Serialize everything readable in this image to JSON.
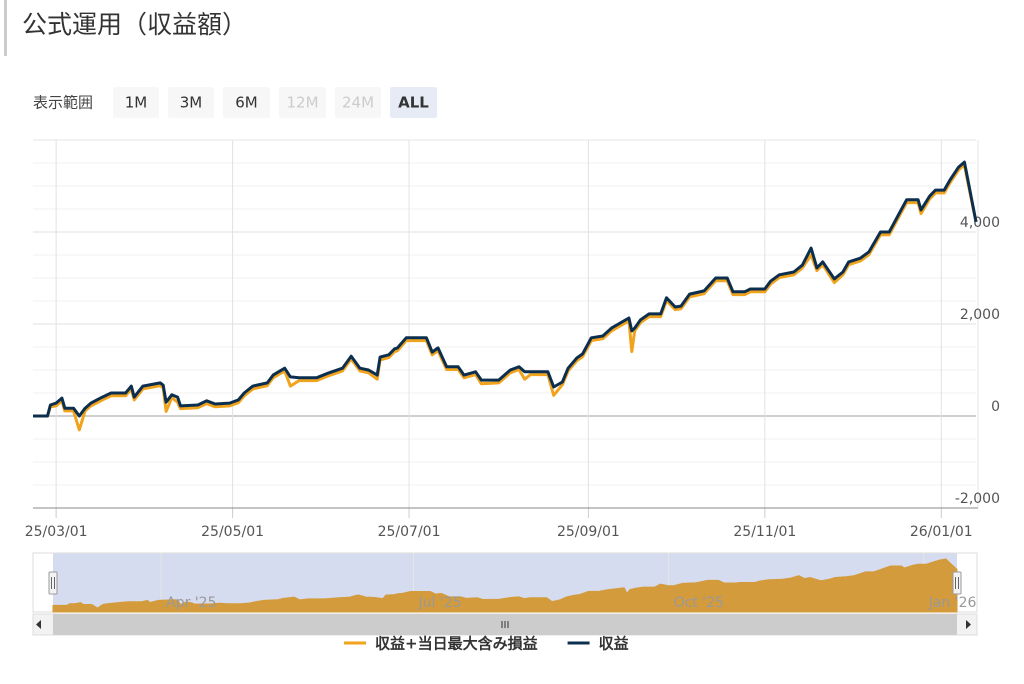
{
  "chart_data": {
    "type": "line",
    "title": "公式運用（収益額）",
    "range_selector": {
      "label": "表示範囲",
      "buttons": [
        "1M",
        "3M",
        "6M",
        "12M",
        "24M",
        "ALL"
      ],
      "selected": 5,
      "disabled": [
        3,
        4
      ]
    },
    "x": [
      "2025-02-21",
      "2025-02-26",
      "2025-02-27",
      "2025-03-01",
      "2025-03-03",
      "2025-03-04",
      "2025-03-07",
      "2025-03-09",
      "2025-03-11",
      "2025-03-13",
      "2025-03-17",
      "2025-03-20",
      "2025-03-25",
      "2025-03-27",
      "2025-03-28",
      "2025-03-31",
      "2025-04-06",
      "2025-04-07",
      "2025-04-08",
      "2025-04-10",
      "2025-04-12",
      "2025-04-13",
      "2025-04-19",
      "2025-04-22",
      "2025-04-25",
      "2025-04-30",
      "2025-05-03",
      "2025-05-05",
      "2025-05-08",
      "2025-05-13",
      "2025-05-15",
      "2025-05-19",
      "2025-05-21",
      "2025-05-24",
      "2025-05-30",
      "2025-06-03",
      "2025-06-08",
      "2025-06-11",
      "2025-06-14",
      "2025-06-17",
      "2025-06-20",
      "2025-06-21",
      "2025-06-24",
      "2025-06-26",
      "2025-06-27",
      "2025-06-30",
      "2025-07-07",
      "2025-07-09",
      "2025-07-11",
      "2025-07-14",
      "2025-07-18",
      "2025-07-20",
      "2025-07-24",
      "2025-07-26",
      "2025-08-01",
      "2025-08-05",
      "2025-08-08",
      "2025-08-10",
      "2025-08-12",
      "2025-08-18",
      "2025-08-20",
      "2025-08-23",
      "2025-08-25",
      "2025-08-28",
      "2025-08-30",
      "2025-09-02",
      "2025-09-06",
      "2025-09-09",
      "2025-09-15",
      "2025-09-16",
      "2025-09-17",
      "2025-09-19",
      "2025-09-22",
      "2025-09-26",
      "2025-09-28",
      "2025-10-01",
      "2025-10-03",
      "2025-10-06",
      "2025-10-11",
      "2025-10-15",
      "2025-10-19",
      "2025-10-21",
      "2025-10-25",
      "2025-10-27",
      "2025-11-01",
      "2025-11-03",
      "2025-11-06",
      "2025-11-11",
      "2025-11-14",
      "2025-11-17",
      "2025-11-19",
      "2025-11-21",
      "2025-11-25",
      "2025-11-28",
      "2025-11-30",
      "2025-12-04",
      "2025-12-07",
      "2025-12-11",
      "2025-12-14",
      "2025-12-17",
      "2025-12-20",
      "2025-12-24",
      "2025-12-25",
      "2025-12-28",
      "2025-12-30",
      "2026-01-02",
      "2026-01-04",
      "2026-01-07",
      "2026-01-09",
      "2026-01-10",
      "2026-01-13"
    ],
    "series": [
      {
        "name": "収益+当日最大含み損益",
        "color": "#f0a31c",
        "values": [
          0,
          0,
          200,
          220,
          330,
          110,
          110,
          -300,
          110,
          220,
          350,
          440,
          440,
          590,
          350,
          590,
          660,
          610,
          100,
          400,
          300,
          160,
          180,
          270,
          200,
          220,
          290,
          440,
          590,
          660,
          830,
          980,
          650,
          770,
          770,
          870,
          980,
          1240,
          980,
          940,
          800,
          1220,
          1270,
          1400,
          1420,
          1640,
          1640,
          1330,
          1420,
          1010,
          1010,
          830,
          900,
          700,
          720,
          940,
          1010,
          800,
          900,
          900,
          450,
          680,
          980,
          1200,
          1290,
          1640,
          1680,
          1850,
          2070,
          1400,
          1850,
          2030,
          2160,
          2160,
          2510,
          2310,
          2330,
          2590,
          2660,
          2940,
          2940,
          2640,
          2640,
          2700,
          2700,
          2870,
          3010,
          3070,
          3220,
          3500,
          3160,
          3290,
          2900,
          3070,
          3290,
          3370,
          3510,
          3940,
          3940,
          4290,
          4640,
          4640,
          4400,
          4720,
          4850,
          4850,
          5070,
          5350,
          5460,
          5140,
          4220
        ]
      },
      {
        "name": "収益",
        "color": "#0d2f4f",
        "values": [
          0,
          0,
          240,
          280,
          390,
          170,
          170,
          0,
          170,
          280,
          410,
          500,
          500,
          650,
          410,
          650,
          720,
          670,
          300,
          460,
          410,
          220,
          240,
          330,
          260,
          280,
          350,
          500,
          650,
          720,
          890,
          1040,
          850,
          830,
          830,
          930,
          1040,
          1300,
          1040,
          1000,
          890,
          1280,
          1330,
          1460,
          1480,
          1700,
          1700,
          1390,
          1480,
          1070,
          1070,
          890,
          960,
          780,
          780,
          1000,
          1070,
          960,
          960,
          960,
          630,
          740,
          1040,
          1260,
          1350,
          1700,
          1740,
          1910,
          2130,
          1850,
          1910,
          2090,
          2220,
          2220,
          2570,
          2370,
          2390,
          2650,
          2720,
          3000,
          3000,
          2700,
          2700,
          2760,
          2760,
          2930,
          3070,
          3130,
          3280,
          3650,
          3220,
          3350,
          2980,
          3130,
          3350,
          3430,
          3570,
          4000,
          4000,
          4350,
          4700,
          4700,
          4480,
          4780,
          4910,
          4910,
          5130,
          5410,
          5520,
          5200,
          4220
        ]
      }
    ],
    "xlim": [
      "2025-02-21",
      "2026-01-13"
    ],
    "xticks": [
      {
        "value": "2025-03-01",
        "label": "25/03/01"
      },
      {
        "value": "2025-05-01",
        "label": "25/05/01"
      },
      {
        "value": "2025-07-01",
        "label": "25/07/01"
      },
      {
        "value": "2025-09-01",
        "label": "25/09/01"
      },
      {
        "value": "2025-11-01",
        "label": "25/11/01"
      },
      {
        "value": "2026-01-01",
        "label": "26/01/01"
      }
    ],
    "ylim": [
      -2000,
      6000
    ],
    "yticks": [
      {
        "value": -2000,
        "label": "-2,000"
      },
      0,
      {
        "value": 2000,
        "label": "2,000"
      },
      {
        "value": 4000,
        "label": "4,000"
      }
    ],
    "y_minor_tick_interval": 500,
    "grid": true,
    "legend": "bottom",
    "navigator": {
      "xticks": [
        {
          "value": "2025-04-01",
          "label": "Apr '25"
        },
        {
          "value": "2025-07-01",
          "label": "Jul '25"
        },
        {
          "value": "2025-10-01",
          "label": "Oct '25"
        },
        {
          "value": "2026-01-01",
          "label": "Jan '26"
        }
      ]
    }
  }
}
